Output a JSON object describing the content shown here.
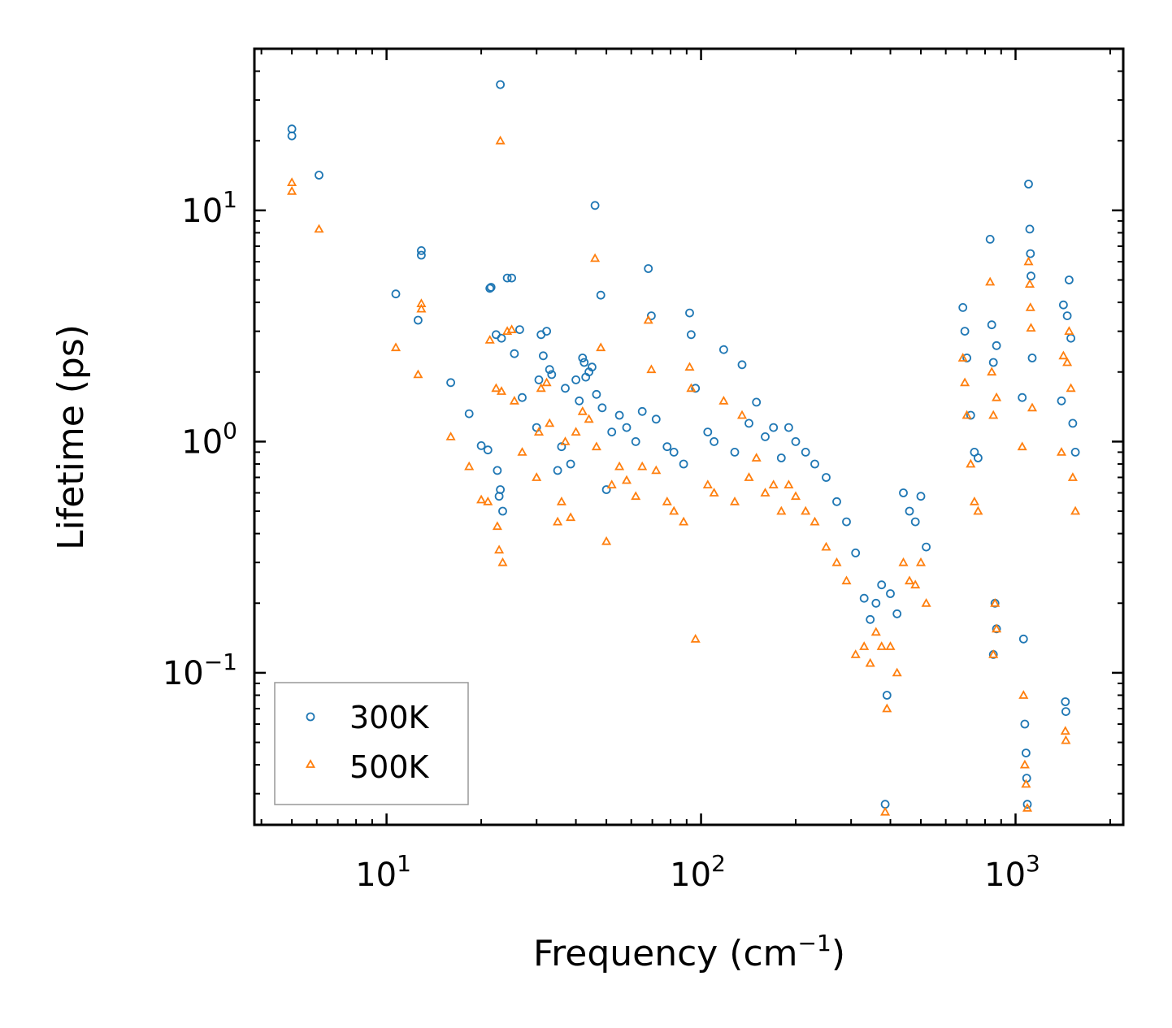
{
  "chart_data": {
    "type": "scatter",
    "xscale": "log",
    "yscale": "log",
    "xlim": [
      3.8,
      2200
    ],
    "ylim": [
      0.022,
      50
    ],
    "xlabel": "Frequency (cm",
    "xlabel_sup": "−1",
    "xlabel_suffix": ")",
    "ylabel": "Lifetime (ps)",
    "xticks": [
      {
        "value": 10,
        "base": "10",
        "exp": "1"
      },
      {
        "value": 100,
        "base": "10",
        "exp": "2"
      },
      {
        "value": 1000,
        "base": "10",
        "exp": "3"
      }
    ],
    "yticks": [
      {
        "value": 0.1,
        "base": "10",
        "exp": "−1"
      },
      {
        "value": 1,
        "base": "10",
        "exp": "0"
      },
      {
        "value": 10,
        "base": "10",
        "exp": "1"
      }
    ],
    "legend_position": "lower-left",
    "series": [
      {
        "name": "300K",
        "marker": "circle",
        "color": "#1f77b4",
        "points": [
          [
            5,
            22.5
          ],
          [
            5,
            21
          ],
          [
            6.1,
            14.2
          ],
          [
            10.7,
            4.35
          ],
          [
            12.6,
            3.35
          ],
          [
            12.9,
            6.7
          ],
          [
            12.9,
            6.4
          ],
          [
            16,
            1.8
          ],
          [
            18.3,
            1.32
          ],
          [
            20,
            0.96
          ],
          [
            21,
            0.92
          ],
          [
            21.3,
            4.6
          ],
          [
            21.5,
            4.65
          ],
          [
            22.3,
            2.9
          ],
          [
            22.5,
            0.75
          ],
          [
            22.8,
            0.58
          ],
          [
            23,
            0.62
          ],
          [
            23.2,
            2.8
          ],
          [
            23.4,
            0.5
          ],
          [
            23,
            35
          ],
          [
            24.2,
            5.1
          ],
          [
            25,
            5.1
          ],
          [
            25.5,
            2.4
          ],
          [
            26.5,
            3.05
          ],
          [
            27,
            1.55
          ],
          [
            30,
            1.15
          ],
          [
            30.5,
            1.85
          ],
          [
            31,
            2.9
          ],
          [
            31.5,
            2.35
          ],
          [
            32.3,
            3
          ],
          [
            33,
            2.05
          ],
          [
            33.5,
            1.95
          ],
          [
            35,
            0.75
          ],
          [
            36,
            0.95
          ],
          [
            37,
            1.7
          ],
          [
            38.5,
            0.8
          ],
          [
            40,
            1.85
          ],
          [
            41,
            1.5
          ],
          [
            42,
            2.3
          ],
          [
            42.5,
            2.2
          ],
          [
            43,
            1.9
          ],
          [
            44,
            2.0
          ],
          [
            45,
            2.1
          ],
          [
            46,
            10.5
          ],
          [
            46.5,
            1.6
          ],
          [
            48,
            4.3
          ],
          [
            48.5,
            1.4
          ],
          [
            50,
            0.62
          ],
          [
            52,
            1.1
          ],
          [
            55,
            1.3
          ],
          [
            58,
            1.15
          ],
          [
            62,
            1.0
          ],
          [
            65,
            1.35
          ],
          [
            68,
            5.6
          ],
          [
            69.5,
            3.5
          ],
          [
            72,
            1.25
          ],
          [
            78,
            0.95
          ],
          [
            82,
            0.9
          ],
          [
            88,
            0.8
          ],
          [
            92,
            3.6
          ],
          [
            93,
            2.9
          ],
          [
            96,
            1.7
          ],
          [
            105,
            1.1
          ],
          [
            110,
            1.0
          ],
          [
            118,
            2.5
          ],
          [
            128,
            0.9
          ],
          [
            135,
            2.15
          ],
          [
            142,
            1.2
          ],
          [
            150,
            1.48
          ],
          [
            160,
            1.05
          ],
          [
            170,
            1.15
          ],
          [
            180,
            0.85
          ],
          [
            190,
            1.15
          ],
          [
            200,
            1.0
          ],
          [
            215,
            0.9
          ],
          [
            230,
            0.8
          ],
          [
            250,
            0.7
          ],
          [
            270,
            0.55
          ],
          [
            290,
            0.45
          ],
          [
            310,
            0.33
          ],
          [
            330,
            0.21
          ],
          [
            345,
            0.17
          ],
          [
            360,
            0.2
          ],
          [
            375,
            0.24
          ],
          [
            385,
            0.027
          ],
          [
            390,
            0.08
          ],
          [
            400,
            0.22
          ],
          [
            420,
            0.18
          ],
          [
            440,
            0.6
          ],
          [
            460,
            0.5
          ],
          [
            480,
            0.45
          ],
          [
            500,
            0.58
          ],
          [
            520,
            0.35
          ],
          [
            680,
            3.8
          ],
          [
            690,
            3.0
          ],
          [
            700,
            2.3
          ],
          [
            720,
            1.3
          ],
          [
            740,
            0.9
          ],
          [
            760,
            0.85
          ],
          [
            830,
            7.5
          ],
          [
            840,
            3.2
          ],
          [
            850,
            2.2
          ],
          [
            870,
            2.6
          ],
          [
            850,
            0.12
          ],
          [
            860,
            0.2
          ],
          [
            870,
            0.155
          ],
          [
            1050,
            1.55
          ],
          [
            1060,
            0.14
          ],
          [
            1070,
            0.06
          ],
          [
            1080,
            0.045
          ],
          [
            1085,
            0.035
          ],
          [
            1090,
            0.027
          ],
          [
            1100,
            13
          ],
          [
            1110,
            8.3
          ],
          [
            1115,
            6.5
          ],
          [
            1120,
            5.2
          ],
          [
            1130,
            2.3
          ],
          [
            1400,
            1.5
          ],
          [
            1420,
            3.9
          ],
          [
            1440,
            0.075
          ],
          [
            1445,
            0.068
          ],
          [
            1460,
            3.5
          ],
          [
            1480,
            5.0
          ],
          [
            1500,
            2.8
          ],
          [
            1520,
            1.2
          ],
          [
            1550,
            0.9
          ]
        ]
      },
      {
        "name": "500K",
        "marker": "triangle",
        "color": "#ff7f0e",
        "points": [
          [
            5,
            13.2
          ],
          [
            5,
            12.1
          ],
          [
            6.1,
            8.3
          ],
          [
            10.7,
            2.55
          ],
          [
            12.6,
            1.95
          ],
          [
            12.9,
            3.95
          ],
          [
            12.9,
            3.75
          ],
          [
            16,
            1.05
          ],
          [
            18.3,
            0.78
          ],
          [
            20,
            0.56
          ],
          [
            21,
            0.55
          ],
          [
            21.3,
            2.75
          ],
          [
            22.3,
            1.7
          ],
          [
            22.5,
            0.43
          ],
          [
            22.8,
            0.34
          ],
          [
            23.2,
            1.65
          ],
          [
            23.4,
            0.3
          ],
          [
            23,
            20
          ],
          [
            24.2,
            3.0
          ],
          [
            25,
            3.05
          ],
          [
            25.5,
            1.5
          ],
          [
            27,
            0.9
          ],
          [
            30,
            0.7
          ],
          [
            30.5,
            1.1
          ],
          [
            31,
            1.7
          ],
          [
            32.3,
            1.8
          ],
          [
            33,
            1.2
          ],
          [
            35,
            0.45
          ],
          [
            36,
            0.55
          ],
          [
            37,
            1.0
          ],
          [
            38.5,
            0.47
          ],
          [
            40,
            1.1
          ],
          [
            42,
            1.35
          ],
          [
            44,
            1.25
          ],
          [
            46,
            6.2
          ],
          [
            46.5,
            0.95
          ],
          [
            48,
            2.55
          ],
          [
            50,
            0.37
          ],
          [
            52,
            0.65
          ],
          [
            55,
            0.78
          ],
          [
            58,
            0.68
          ],
          [
            62,
            0.58
          ],
          [
            65,
            0.78
          ],
          [
            68,
            3.35
          ],
          [
            69.5,
            2.05
          ],
          [
            72,
            0.75
          ],
          [
            78,
            0.55
          ],
          [
            82,
            0.5
          ],
          [
            88,
            0.45
          ],
          [
            92,
            2.1
          ],
          [
            93,
            1.7
          ],
          [
            96,
            0.14
          ],
          [
            105,
            0.65
          ],
          [
            110,
            0.6
          ],
          [
            118,
            1.5
          ],
          [
            128,
            0.55
          ],
          [
            135,
            1.3
          ],
          [
            142,
            0.7
          ],
          [
            150,
            0.85
          ],
          [
            160,
            0.6
          ],
          [
            170,
            0.65
          ],
          [
            180,
            0.5
          ],
          [
            190,
            0.65
          ],
          [
            200,
            0.58
          ],
          [
            215,
            0.5
          ],
          [
            230,
            0.45
          ],
          [
            250,
            0.35
          ],
          [
            270,
            0.3
          ],
          [
            290,
            0.25
          ],
          [
            310,
            0.12
          ],
          [
            330,
            0.13
          ],
          [
            345,
            0.11
          ],
          [
            360,
            0.15
          ],
          [
            375,
            0.13
          ],
          [
            385,
            0.025
          ],
          [
            390,
            0.07
          ],
          [
            400,
            0.13
          ],
          [
            420,
            0.1
          ],
          [
            440,
            0.3
          ],
          [
            460,
            0.25
          ],
          [
            480,
            0.24
          ],
          [
            500,
            0.3
          ],
          [
            520,
            0.2
          ],
          [
            680,
            2.3
          ],
          [
            690,
            1.8
          ],
          [
            700,
            1.3
          ],
          [
            720,
            0.8
          ],
          [
            740,
            0.55
          ],
          [
            760,
            0.5
          ],
          [
            830,
            4.9
          ],
          [
            840,
            2.0
          ],
          [
            850,
            1.3
          ],
          [
            870,
            1.55
          ],
          [
            850,
            0.12
          ],
          [
            860,
            0.2
          ],
          [
            870,
            0.155
          ],
          [
            1050,
            0.95
          ],
          [
            1060,
            0.08
          ],
          [
            1070,
            0.04
          ],
          [
            1080,
            0.033
          ],
          [
            1090,
            0.026
          ],
          [
            1100,
            6.0
          ],
          [
            1110,
            4.8
          ],
          [
            1115,
            3.8
          ],
          [
            1120,
            3.1
          ],
          [
            1130,
            1.4
          ],
          [
            1400,
            0.9
          ],
          [
            1420,
            2.35
          ],
          [
            1440,
            0.056
          ],
          [
            1445,
            0.051
          ],
          [
            1460,
            2.2
          ],
          [
            1480,
            3.0
          ],
          [
            1500,
            1.7
          ],
          [
            1520,
            0.7
          ],
          [
            1550,
            0.5
          ]
        ]
      }
    ]
  }
}
